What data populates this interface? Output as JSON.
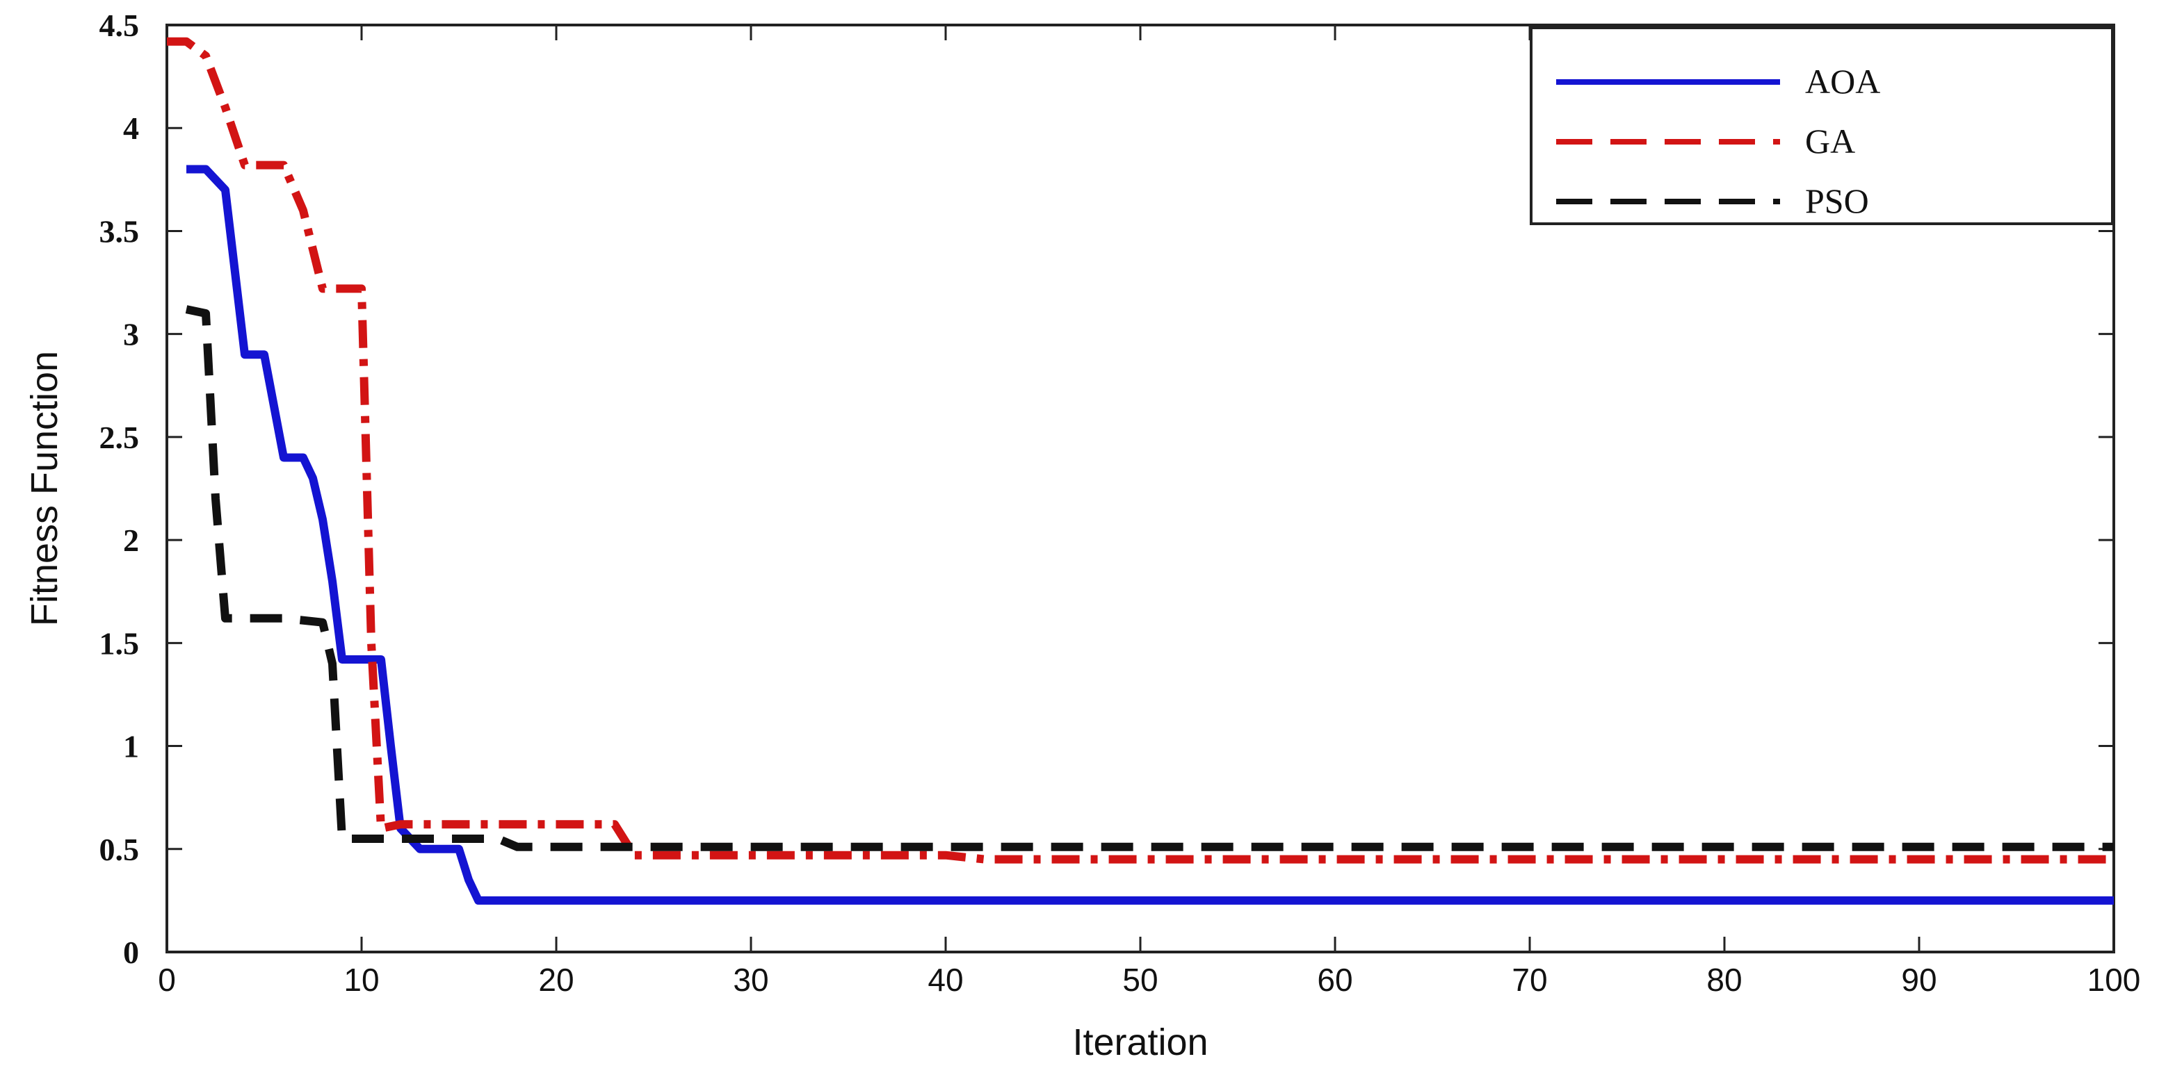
{
  "chart_data": {
    "type": "line",
    "xlabel": "Iteration",
    "ylabel": "Fitness Function",
    "xlim": [
      0,
      100
    ],
    "ylim": [
      0,
      4.5
    ],
    "xticks": [
      "0",
      "10",
      "20",
      "30",
      "40",
      "50",
      "60",
      "70",
      "80",
      "90",
      "100"
    ],
    "yticks": [
      "0",
      "0.5",
      "1",
      "1.5",
      "2",
      "2.5",
      "3",
      "3.5",
      "4",
      "4.5"
    ],
    "grid": false,
    "legend_position": "top-right",
    "series": [
      {
        "name": "AOA",
        "color": "#1414d2",
        "style": "solid",
        "x": [
          1,
          2,
          3,
          4,
          5,
          6,
          7,
          7.5,
          8,
          8.5,
          9,
          10,
          11,
          11.5,
          12,
          12.5,
          13,
          14,
          15,
          15.5,
          16,
          100
        ],
        "y": [
          3.8,
          3.8,
          3.7,
          2.9,
          2.9,
          2.4,
          2.4,
          2.3,
          2.1,
          1.8,
          1.42,
          1.42,
          1.42,
          1.0,
          0.6,
          0.55,
          0.5,
          0.5,
          0.5,
          0.35,
          0.25,
          0.25
        ]
      },
      {
        "name": "GA",
        "color": "#d21414",
        "style": "dashdot",
        "x": [
          0,
          1,
          2,
          3,
          4,
          5,
          6,
          7,
          8,
          9,
          10,
          10.5,
          11,
          12,
          20,
          23,
          24,
          40,
          42,
          100
        ],
        "y": [
          4.42,
          4.42,
          4.35,
          4.1,
          3.82,
          3.82,
          3.82,
          3.6,
          3.22,
          3.22,
          3.22,
          1.5,
          0.6,
          0.62,
          0.62,
          0.62,
          0.47,
          0.47,
          0.45,
          0.45
        ]
      },
      {
        "name": "PSO",
        "color": "#111111",
        "style": "dashed",
        "x": [
          1,
          2,
          2.5,
          3,
          4,
          6,
          8,
          8.5,
          9,
          10,
          15,
          17,
          18,
          100
        ],
        "y": [
          3.12,
          3.1,
          2.2,
          1.62,
          1.62,
          1.62,
          1.6,
          1.4,
          0.55,
          0.55,
          0.55,
          0.55,
          0.51,
          0.51
        ]
      }
    ]
  }
}
